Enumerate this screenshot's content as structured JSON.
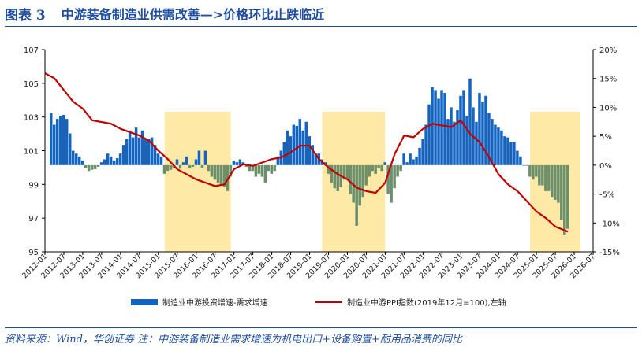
{
  "header": {
    "figure_label": "图表 3",
    "title": "中游装备制造业供需改善—>价格环比止跌临近"
  },
  "footer": {
    "source": "资料来源：Wind，华创证券  注：中游装备制造业需求增速为机电出口+设备购置+耐用品消费的同比"
  },
  "colors": {
    "bar_positive": "#1565c0",
    "bar_negative": "#6b8e6b",
    "line": "#c00000",
    "highlight": "#ffe9a6",
    "accent": "#1f4e9e"
  },
  "chart_data": {
    "type": "bar+line",
    "x_start": "2012-01",
    "x_end": "2026-07",
    "x_tick_labels": [
      "2012-01",
      "2012-07",
      "2013-01",
      "2013-07",
      "2014-01",
      "2014-07",
      "2015-01",
      "2015-07",
      "2016-01",
      "2016-07",
      "2017-01",
      "2017-07",
      "2018-01",
      "2018-07",
      "2019-01",
      "2019-07",
      "2020-01",
      "2020-07",
      "2021-01",
      "2021-07",
      "2022-01",
      "2022-07",
      "2023-01",
      "2023-07",
      "2024-01",
      "2024-07",
      "2025-01",
      "2025-07",
      "2026-01",
      "2026-07"
    ],
    "y_left": {
      "min": 95,
      "max": 107,
      "ticks": [
        "95",
        "97",
        "99",
        "101",
        "103",
        "105",
        "107"
      ]
    },
    "y_right": {
      "min": -15,
      "max": 20,
      "ticks": [
        "-15%",
        "-10%",
        "-5%",
        "0%",
        "5%",
        "10%",
        "15%",
        "20%"
      ]
    },
    "highlight_periods": [
      {
        "from": "2015-03",
        "to": "2016-12"
      },
      {
        "from": "2019-05",
        "to": "2021-01"
      },
      {
        "from": "2024-11",
        "to": "2026-03"
      }
    ],
    "series": [
      {
        "name": "制造业中游投资增速-需求增速",
        "kind": "bar",
        "axis": "right",
        "x": [
          "2012-03",
          "2012-04",
          "2012-05",
          "2012-06",
          "2012-07",
          "2012-08",
          "2012-09",
          "2012-10",
          "2012-11",
          "2012-12",
          "2013-01",
          "2013-02",
          "2013-03",
          "2013-04",
          "2013-05",
          "2013-06",
          "2013-07",
          "2013-08",
          "2013-09",
          "2013-10",
          "2013-11",
          "2013-12",
          "2014-01",
          "2014-02",
          "2014-03",
          "2014-04",
          "2014-05",
          "2014-06",
          "2014-07",
          "2014-08",
          "2014-09",
          "2014-10",
          "2014-11",
          "2014-12",
          "2015-01",
          "2015-02",
          "2015-03",
          "2015-04",
          "2015-05",
          "2015-06",
          "2015-07",
          "2015-08",
          "2015-09",
          "2015-10",
          "2015-11",
          "2015-12",
          "2016-01",
          "2016-02",
          "2016-03",
          "2016-04",
          "2016-05",
          "2016-06",
          "2016-07",
          "2016-08",
          "2016-09",
          "2016-10",
          "2016-11",
          "2016-12",
          "2017-01",
          "2017-02",
          "2017-03",
          "2017-04",
          "2017-05",
          "2017-06",
          "2017-07",
          "2017-08",
          "2017-09",
          "2017-10",
          "2017-11",
          "2017-12",
          "2018-01",
          "2018-02",
          "2018-03",
          "2018-04",
          "2018-05",
          "2018-06",
          "2018-07",
          "2018-08",
          "2018-09",
          "2018-10",
          "2018-11",
          "2018-12",
          "2019-01",
          "2019-02",
          "2019-03",
          "2019-04",
          "2019-05",
          "2019-06",
          "2019-07",
          "2019-08",
          "2019-09",
          "2019-10",
          "2019-11",
          "2019-12",
          "2020-01",
          "2020-02",
          "2020-03",
          "2020-04",
          "2020-05",
          "2020-06",
          "2020-07",
          "2020-08",
          "2020-09",
          "2020-10",
          "2020-11",
          "2020-12",
          "2021-01",
          "2021-02",
          "2021-03",
          "2021-04",
          "2021-05",
          "2021-06",
          "2021-07",
          "2021-08",
          "2021-09",
          "2021-10",
          "2021-11",
          "2021-12",
          "2022-01",
          "2022-02",
          "2022-03",
          "2022-04",
          "2022-05",
          "2022-06",
          "2022-07",
          "2022-08",
          "2022-09",
          "2022-10",
          "2022-11",
          "2022-12",
          "2023-01",
          "2023-02",
          "2023-03",
          "2023-04",
          "2023-05",
          "2023-06",
          "2023-07",
          "2023-08",
          "2023-09",
          "2023-10",
          "2023-11",
          "2023-12",
          "2024-01",
          "2024-02",
          "2024-03",
          "2024-04",
          "2024-05",
          "2024-06",
          "2024-07",
          "2024-08",
          "2024-09",
          "2024-10",
          "2024-11",
          "2024-12",
          "2025-01",
          "2025-02",
          "2025-03",
          "2025-04",
          "2025-05",
          "2025-06",
          "2025-07",
          "2025-08",
          "2025-09",
          "2025-10",
          "2025-11"
        ],
        "values": [
          9.0,
          7.0,
          8.0,
          8.5,
          8.7,
          8.0,
          5.5,
          2.5,
          2.0,
          1.5,
          0.8,
          -0.5,
          -1.0,
          -0.8,
          -0.7,
          -0.3,
          0.5,
          1.0,
          2.0,
          1.5,
          0.8,
          1.2,
          2.0,
          3.5,
          4.5,
          6.0,
          4.8,
          6.5,
          4.8,
          6.0,
          4.5,
          4.6,
          4.8,
          3.5,
          2.0,
          1.5,
          -1.5,
          -1.0,
          -0.8,
          -0.5,
          1.0,
          -0.6,
          0.5,
          1.5,
          -0.5,
          -0.3,
          1.0,
          2.5,
          -0.5,
          2.5,
          -1.0,
          -2.0,
          -2.5,
          -3.0,
          -3.5,
          -3.8,
          -4.5,
          -2.0,
          0.8,
          0.5,
          1.0,
          0.5,
          -0.3,
          -1.0,
          -1.0,
          -2.0,
          -1.5,
          -2.0,
          -3.0,
          -1.0,
          -1.5,
          -1.0,
          1.5,
          2.5,
          4.0,
          6.0,
          5.0,
          7.0,
          6.8,
          8.0,
          6.0,
          7.5,
          5.0,
          3.5,
          2.0,
          2.0,
          1.0,
          0.5,
          -1.5,
          -3.0,
          -4.0,
          -4.5,
          -3.8,
          -2.5,
          -2.5,
          -5.0,
          -6.5,
          -10.5,
          -7.0,
          -5.5,
          -3.5,
          -2.0,
          -1.0,
          -1.5,
          -0.5,
          -1.0,
          0.5,
          -5.0,
          -6.5,
          -4.0,
          -2.0,
          -1.0,
          2.0,
          0.5,
          2.0,
          1.0,
          1.5,
          3.0,
          4.5,
          7.0,
          10.5,
          13.5,
          13.0,
          11.5,
          13.0,
          12.5,
          8.0,
          10.0,
          7.5,
          9.5,
          12.0,
          13.0,
          8.5,
          15.0,
          10.0,
          7.5,
          12.5,
          11.0,
          12.0,
          9.0,
          8.0,
          7.0,
          6.5,
          6.0,
          5.0,
          4.8,
          4.0,
          4.0,
          2.5,
          1.5,
          0.0,
          0.0,
          -2.0,
          -2.5,
          -2.0,
          -3.5,
          -3.5,
          -4.5,
          -4.5,
          -5.5,
          -6.0,
          -6.5,
          -9.5,
          -12.0,
          -11.0
        ]
      },
      {
        "name": "制造业中游PPI指数(2019年12月=100),左轴",
        "kind": "line",
        "axis": "left",
        "x": [
          "2012-01",
          "2012-04",
          "2012-07",
          "2012-10",
          "2013-01",
          "2013-04",
          "2013-07",
          "2013-10",
          "2014-01",
          "2014-04",
          "2014-07",
          "2014-10",
          "2015-01",
          "2015-04",
          "2015-07",
          "2015-10",
          "2016-01",
          "2016-04",
          "2016-07",
          "2016-10",
          "2017-01",
          "2017-04",
          "2017-07",
          "2017-10",
          "2018-01",
          "2018-04",
          "2018-07",
          "2018-10",
          "2019-01",
          "2019-04",
          "2019-07",
          "2019-10",
          "2020-01",
          "2020-04",
          "2020-07",
          "2020-10",
          "2021-01",
          "2021-04",
          "2021-07",
          "2021-10",
          "2022-01",
          "2022-04",
          "2022-07",
          "2022-10",
          "2023-01",
          "2023-04",
          "2023-07",
          "2023-10",
          "2024-01",
          "2024-04",
          "2024-07",
          "2024-10",
          "2025-01",
          "2025-04",
          "2025-07",
          "2025-11"
        ],
        "values": [
          105.6,
          105.3,
          104.6,
          103.9,
          103.5,
          102.8,
          102.7,
          102.6,
          102.3,
          102.1,
          101.9,
          101.6,
          101.0,
          100.5,
          99.9,
          99.6,
          99.3,
          99.1,
          98.9,
          99.0,
          99.9,
          100.2,
          100.1,
          100.3,
          100.5,
          100.6,
          100.9,
          101.3,
          101.3,
          100.5,
          100.0,
          99.6,
          99.3,
          98.8,
          98.6,
          98.5,
          99.1,
          100.8,
          101.9,
          101.8,
          102.3,
          102.6,
          102.5,
          102.4,
          102.8,
          102.0,
          101.5,
          100.6,
          99.6,
          99.0,
          98.6,
          98.0,
          97.4,
          97.0,
          96.5,
          96.2
        ]
      }
    ]
  }
}
